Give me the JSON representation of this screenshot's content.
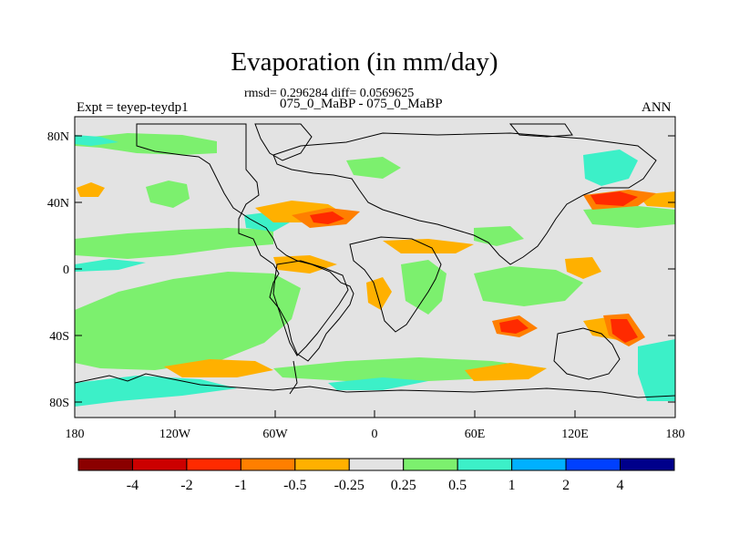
{
  "title": "Evaporation (in mm/day)",
  "stats": "rmsd= 0.296284 diff= 0.0569625",
  "experiment_pair": "075_0_MaBP - 075_0_MaBP",
  "experiment_label": "Expt = teyep-teydp1",
  "season": "ANN",
  "colors": {
    "land": "#e3e3e3",
    "neutral": "#e3e3e3",
    "outline": "#000000"
  },
  "map": {
    "lat_ticks": [
      "80N",
      "40N",
      "0",
      "40S",
      "80S"
    ],
    "lon_ticks": [
      "180",
      "120W",
      "60W",
      "0",
      "60E",
      "120E",
      "180"
    ]
  },
  "colorbar": {
    "colors": [
      "#8b0000",
      "#cc0000",
      "#ff2a00",
      "#ff7f00",
      "#ffb000",
      "#e3e3e3",
      "#7cf06e",
      "#3cf0c8",
      "#00b0ff",
      "#0040ff",
      "#00008b"
    ],
    "labels": [
      "-4",
      "-2",
      "-1",
      "-0.5",
      "-0.25",
      "0.25",
      "0.5",
      "1",
      "2",
      "4"
    ]
  }
}
